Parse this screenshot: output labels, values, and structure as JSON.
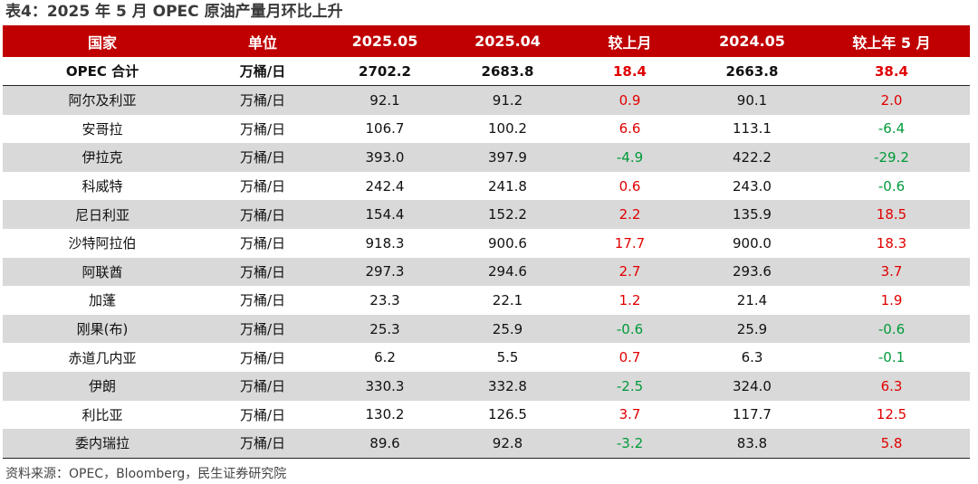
{
  "title": "表4：2025 年 5 月 OPEC 原油产量月环比上升",
  "headers": [
    "国家",
    "单位",
    "2025.05",
    "2025.04",
    "较上月",
    "2024.05",
    "较上年 5 月"
  ],
  "rows": [
    {
      "country": "OPEC 合计",
      "unit": "万桶/日",
      "may2025": "2702.2",
      "apr2025": "2683.8",
      "mom": "18.4",
      "may2024": "2663.8",
      "yoy": "38.4"
    },
    {
      "country": "阿尔及利亚",
      "unit": "万桶/日",
      "may2025": "92.1",
      "apr2025": "91.2",
      "mom": "0.9",
      "may2024": "90.1",
      "yoy": "2.0"
    },
    {
      "country": "安哥拉",
      "unit": "万桶/日",
      "may2025": "106.7",
      "apr2025": "100.2",
      "mom": "6.6",
      "may2024": "113.1",
      "yoy": "-6.4"
    },
    {
      "country": "伊拉克",
      "unit": "万桶/日",
      "may2025": "393.0",
      "apr2025": "397.9",
      "mom": "-4.9",
      "may2024": "422.2",
      "yoy": "-29.2"
    },
    {
      "country": "科威特",
      "unit": "万桶/日",
      "may2025": "242.4",
      "apr2025": "241.8",
      "mom": "0.6",
      "may2024": "243.0",
      "yoy": "-0.6"
    },
    {
      "country": "尼日利亚",
      "unit": "万桶/日",
      "may2025": "154.4",
      "apr2025": "152.2",
      "mom": "2.2",
      "may2024": "135.9",
      "yoy": "18.5"
    },
    {
      "country": "沙特阿拉伯",
      "unit": "万桶/日",
      "may2025": "918.3",
      "apr2025": "900.6",
      "mom": "17.7",
      "may2024": "900.0",
      "yoy": "18.3"
    },
    {
      "country": "阿联酋",
      "unit": "万桶/日",
      "may2025": "297.3",
      "apr2025": "294.6",
      "mom": "2.7",
      "may2024": "293.6",
      "yoy": "3.7"
    },
    {
      "country": "加蓬",
      "unit": "万桶/日",
      "may2025": "23.3",
      "apr2025": "22.1",
      "mom": "1.2",
      "may2024": "21.4",
      "yoy": "1.9"
    },
    {
      "country": "刚果(布)",
      "unit": "万桶/日",
      "may2025": "25.3",
      "apr2025": "25.9",
      "mom": "-0.6",
      "may2024": "25.9",
      "yoy": "-0.6"
    },
    {
      "country": "赤道几内亚",
      "unit": "万桶/日",
      "may2025": "6.2",
      "apr2025": "5.5",
      "mom": "0.7",
      "may2024": "6.3",
      "yoy": "-0.1"
    },
    {
      "country": "伊朗",
      "unit": "万桶/日",
      "may2025": "330.3",
      "apr2025": "332.8",
      "mom": "-2.5",
      "may2024": "324.0",
      "yoy": "6.3"
    },
    {
      "country": "利比亚",
      "unit": "万桶/日",
      "may2025": "130.2",
      "apr2025": "126.5",
      "mom": "3.7",
      "may2024": "117.7",
      "yoy": "12.5"
    },
    {
      "country": "委内瑞拉",
      "unit": "万桶/日",
      "may2025": "89.6",
      "apr2025": "92.8",
      "mom": "-3.2",
      "may2024": "83.8",
      "yoy": "5.8"
    }
  ],
  "source": "资料来源：OPEC，Bloomberg，民生证券研究院",
  "colors": {
    "header_bg": "#c00000",
    "positive": "#e00000",
    "negative": "#009a3a",
    "stripe": "#d9d9d9"
  }
}
